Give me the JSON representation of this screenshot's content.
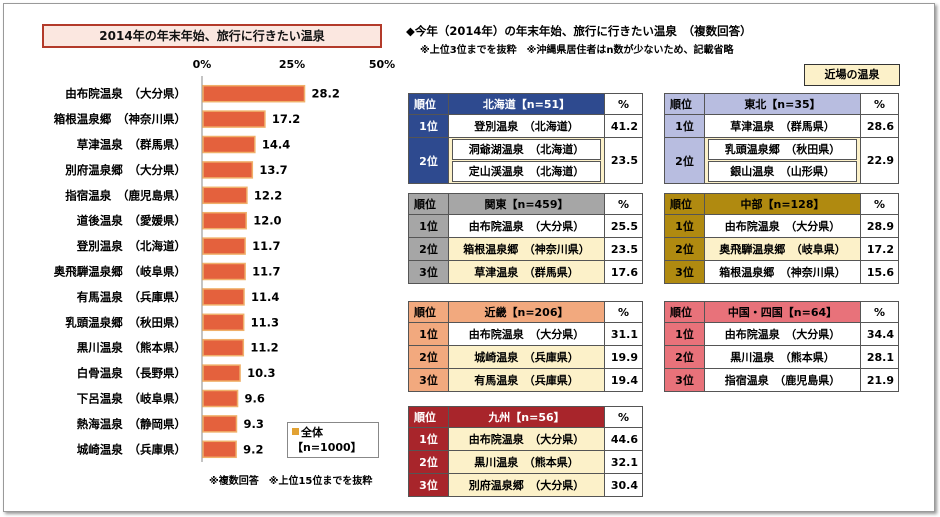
{
  "chart_data": {
    "type": "bar",
    "orientation": "horizontal",
    "title": "2014年の年末年始、旅行に行きたい温泉",
    "categories": [
      "由布院温泉　（大分県）",
      "箱根温泉郷　（神奈川県）",
      "草津温泉　（群馬県）",
      "別府温泉郷　（大分県）",
      "指宿温泉　（鹿児島県）",
      "道後温泉　（愛媛県）",
      "登別温泉　（北海道）",
      "奥飛騨温泉郷　（岐阜県）",
      "有馬温泉　（兵庫県）",
      "乳頭温泉郷　（秋田県）",
      "黒川温泉　（熊本県）",
      "白骨温泉　（長野県）",
      "下呂温泉　（岐阜県）",
      "熱海温泉　（静岡県）",
      "城崎温泉　（兵庫県）"
    ],
    "values": [
      28.2,
      17.2,
      14.4,
      13.7,
      12.2,
      12.0,
      11.7,
      11.7,
      11.4,
      11.3,
      11.2,
      10.3,
      9.6,
      9.3,
      9.2
    ],
    "value_labels": [
      "28.2",
      "17.2",
      "14.4",
      "13.7",
      "12.2",
      "12.0",
      "11.7",
      "11.7",
      "11.4",
      "11.3",
      "11.2",
      "10.3",
      "9.6",
      "9.3",
      "9.2"
    ],
    "xlim": [
      0,
      50
    ],
    "ticks": [
      "0%",
      "25%",
      "50%"
    ],
    "legend": {
      "name": "全体",
      "n": "【n=1000】"
    },
    "colors": {
      "bar": "#e4613d",
      "bar_border": "#f0b06a",
      "legend_swatch": "#e2a233"
    }
  },
  "footnote_left": "※複数回答　※上位15位までを抜粋",
  "right_panel": {
    "title": "◆今年（2014年）の年末年始、旅行に行きたい温泉　（複数回答）",
    "note": "※上位3位までを抜粋　※沖縄県居住者はn数が少ないため、記載省略",
    "nearby_label": "近場の温泉"
  },
  "regions": [
    {
      "key": "hokkaido",
      "header": {
        "rank": "順位",
        "name": "北海道【n=51】",
        "pct": "%"
      },
      "colors": {
        "head": "#2e4a8f",
        "head_text": "#ffffff",
        "rank_bg": "#2e4a8f",
        "rank_text": "#ffffff",
        "pct_head_bg": "#ffffff",
        "pct_head_text": "#000000"
      },
      "rows": [
        {
          "rank": "1位",
          "names": [
            "登別温泉　（北海道）"
          ],
          "value": "41.2",
          "nearby": false
        },
        {
          "rank": "2位",
          "names": [
            "洞爺湖温泉　（北海道）",
            "定山渓温泉　（北海道）"
          ],
          "value": "23.5",
          "nearby": true
        }
      ]
    },
    {
      "key": "tohoku",
      "header": {
        "rank": "順位",
        "name": "東北【n=35】",
        "pct": "%"
      },
      "colors": {
        "head": "#b8bde0",
        "head_text": "#000000",
        "rank_bg": "#b8bde0",
        "rank_text": "#000000",
        "pct_head_bg": "#ffffff",
        "pct_head_text": "#000000"
      },
      "rows": [
        {
          "rank": "1位",
          "names": [
            "草津温泉　（群馬県）"
          ],
          "value": "28.6",
          "nearby": false
        },
        {
          "rank": "2位",
          "names": [
            "乳頭温泉郷　（秋田県）",
            "銀山温泉　（山形県）"
          ],
          "value": "22.9",
          "nearby": true
        }
      ]
    },
    {
      "key": "kanto",
      "header": {
        "rank": "順位",
        "name": "関東【n=459】",
        "pct": "%"
      },
      "colors": {
        "head": "#a6a6a6",
        "head_text": "#000000",
        "rank_bg": "#a6a6a6",
        "rank_text": "#000000",
        "pct_head_bg": "#ffffff",
        "pct_head_text": "#000000"
      },
      "rows": [
        {
          "rank": "1位",
          "names": [
            "由布院温泉　（大分県）"
          ],
          "value": "25.5",
          "nearby": false
        },
        {
          "rank": "2位",
          "names": [
            "箱根温泉郷　（神奈川県）"
          ],
          "value": "23.5",
          "nearby": true
        },
        {
          "rank": "3位",
          "names": [
            "草津温泉　（群馬県）"
          ],
          "value": "17.6",
          "nearby": true
        }
      ]
    },
    {
      "key": "chubu",
      "header": {
        "rank": "順位",
        "name": "中部【n=128】",
        "pct": "%"
      },
      "colors": {
        "head": "#b08a10",
        "head_text": "#000000",
        "rank_bg": "#b08a10",
        "rank_text": "#000000",
        "pct_head_bg": "#ffffff",
        "pct_head_text": "#000000"
      },
      "rows": [
        {
          "rank": "1位",
          "names": [
            "由布院温泉　（大分県）"
          ],
          "value": "28.9",
          "nearby": false
        },
        {
          "rank": "2位",
          "names": [
            "奥飛騨温泉郷　（岐阜県）"
          ],
          "value": "17.2",
          "nearby": true
        },
        {
          "rank": "3位",
          "names": [
            "箱根温泉郷　（神奈川県）"
          ],
          "value": "15.6",
          "nearby": false
        }
      ]
    },
    {
      "key": "kinki",
      "header": {
        "rank": "順位",
        "name": "近畿【n=206】",
        "pct": "%"
      },
      "colors": {
        "head": "#f2a97e",
        "head_text": "#000000",
        "rank_bg": "#f2a97e",
        "rank_text": "#000000",
        "pct_head_bg": "#ffffff",
        "pct_head_text": "#000000"
      },
      "rows": [
        {
          "rank": "1位",
          "names": [
            "由布院温泉　（大分県）"
          ],
          "value": "31.1",
          "nearby": false
        },
        {
          "rank": "2位",
          "names": [
            "城崎温泉　（兵庫県）"
          ],
          "value": "19.9",
          "nearby": true
        },
        {
          "rank": "3位",
          "names": [
            "有馬温泉　（兵庫県）"
          ],
          "value": "19.4",
          "nearby": true
        }
      ]
    },
    {
      "key": "chugoku_shikoku",
      "header": {
        "rank": "順位",
        "name": "中国・四国【n=64】",
        "pct": "%"
      },
      "colors": {
        "head": "#e8727a",
        "head_text": "#000000",
        "rank_bg": "#e8727a",
        "rank_text": "#000000",
        "pct_head_bg": "#ffffff",
        "pct_head_text": "#000000"
      },
      "rows": [
        {
          "rank": "1位",
          "names": [
            "由布院温泉　（大分県）"
          ],
          "value": "34.4",
          "nearby": false
        },
        {
          "rank": "2位",
          "names": [
            "黒川温泉　（熊本県）"
          ],
          "value": "28.1",
          "nearby": false
        },
        {
          "rank": "3位",
          "names": [
            "指宿温泉　（鹿児島県）"
          ],
          "value": "21.9",
          "nearby": false
        }
      ]
    },
    {
      "key": "kyushu",
      "header": {
        "rank": "順位",
        "name": "九州【n=56】",
        "pct": "%"
      },
      "colors": {
        "head": "#a8252b",
        "head_text": "#ffffff",
        "rank_bg": "#a8252b",
        "rank_text": "#ffffff",
        "pct_head_bg": "#ffffff",
        "pct_head_text": "#000000"
      },
      "rows": [
        {
          "rank": "1位",
          "names": [
            "由布院温泉　（大分県）"
          ],
          "value": "44.6",
          "nearby": true
        },
        {
          "rank": "2位",
          "names": [
            "黒川温泉　（熊本県）"
          ],
          "value": "32.1",
          "nearby": true
        },
        {
          "rank": "3位",
          "names": [
            "別府温泉郷　（大分県）"
          ],
          "value": "30.4",
          "nearby": true
        }
      ]
    }
  ],
  "nearby_color": "#fcf1c9"
}
